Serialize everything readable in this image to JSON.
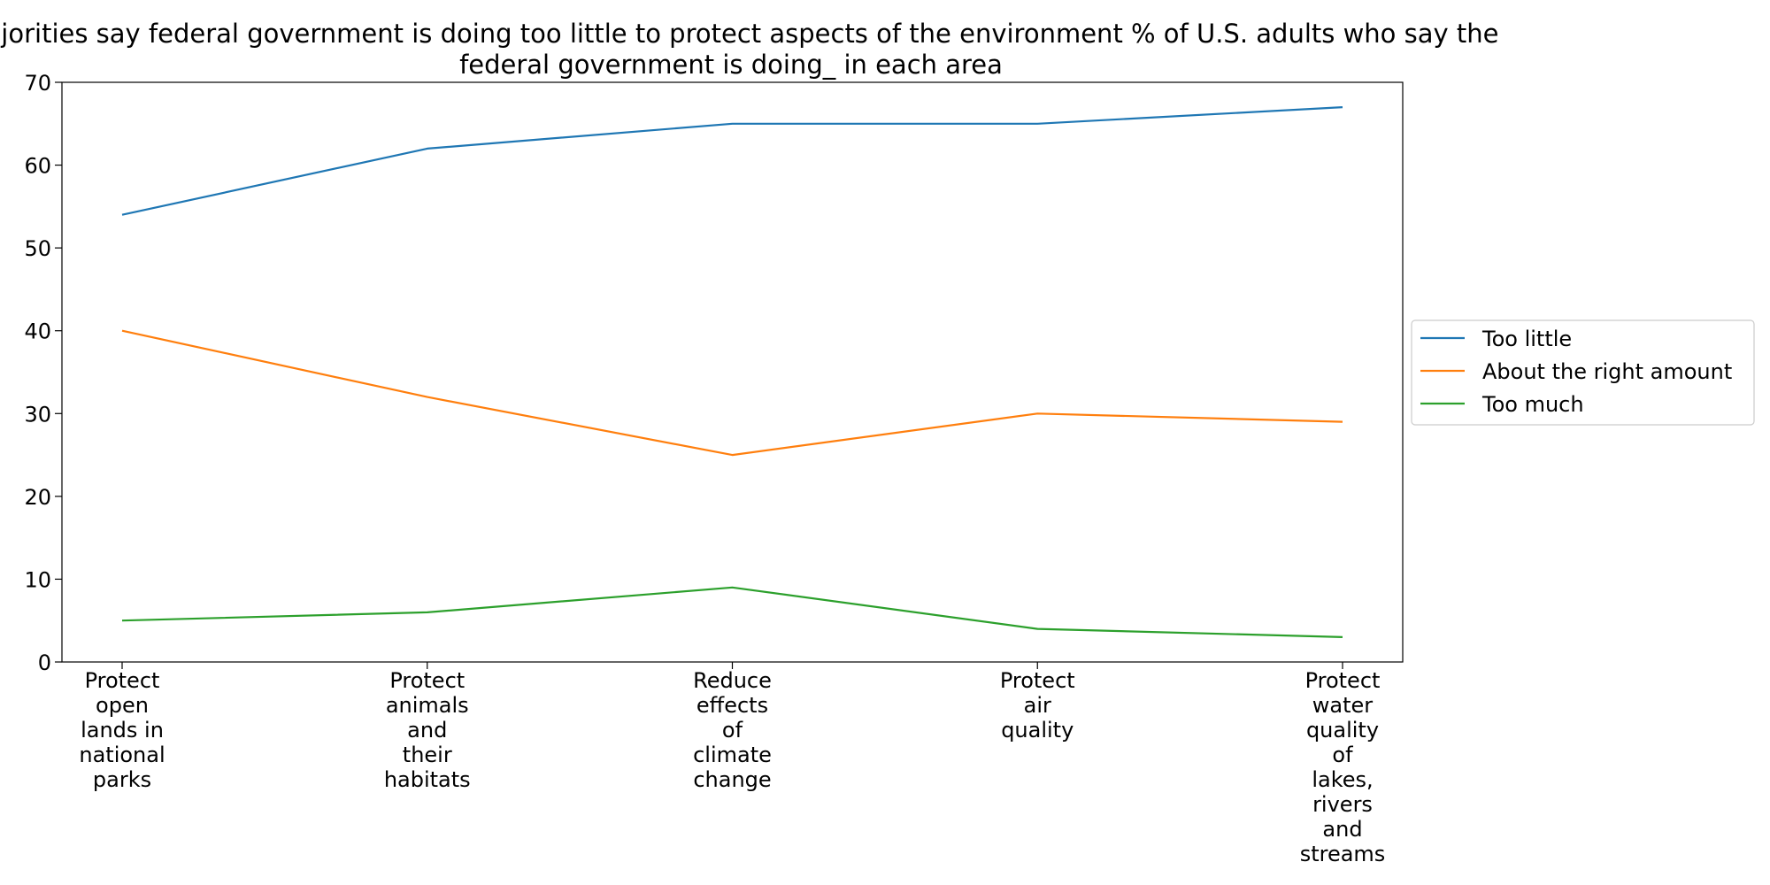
{
  "chart_data": {
    "type": "line",
    "title_line1": "Majorities say federal government is doing too little to protect aspects of the environment % of U.S. adults who say the",
    "title_line2": "federal government is doing_ in each area",
    "xlabel": "",
    "ylabel": "",
    "ylim": [
      0,
      70
    ],
    "yticks": [
      0,
      10,
      20,
      30,
      40,
      50,
      60,
      70
    ],
    "grid": false,
    "legend_position": "right-center",
    "categories": [
      [
        "Protect",
        "open",
        "lands in",
        "national",
        "parks"
      ],
      [
        "Protect",
        "animals",
        "and",
        "their",
        "habitats"
      ],
      [
        "Reduce",
        "effects",
        "of",
        "climate",
        "change"
      ],
      [
        "Protect",
        "air",
        "quality"
      ],
      [
        "Protect",
        "water",
        "quality",
        "of",
        "lakes,",
        "rivers",
        "and",
        "streams"
      ]
    ],
    "series": [
      {
        "name": "Too little",
        "color": "#1f77b4",
        "values": [
          54,
          62,
          65,
          65,
          67
        ]
      },
      {
        "name": "About the right amount",
        "color": "#ff7f0e",
        "values": [
          40,
          32,
          25,
          30,
          29
        ]
      },
      {
        "name": "Too much",
        "color": "#2ca02c",
        "values": [
          5,
          6,
          9,
          4,
          3
        ]
      }
    ]
  }
}
